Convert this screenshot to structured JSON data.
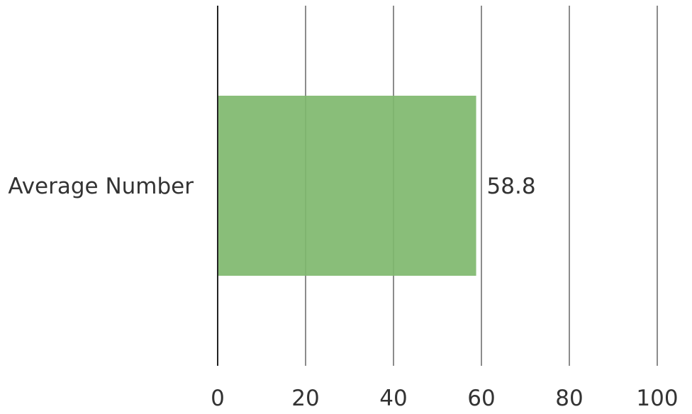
{
  "chart_data": {
    "type": "bar",
    "orientation": "horizontal",
    "categories": [
      "Average Number"
    ],
    "values": [
      58.8
    ],
    "data_labels": [
      "58.8"
    ],
    "title": "",
    "xlabel": "",
    "ylabel": "",
    "xlim": [
      0,
      100
    ],
    "x_ticks": [
      "0",
      "20",
      "40",
      "60",
      "80",
      "100"
    ],
    "grid": true,
    "legend": "none",
    "colors": {
      "bar": "#7fb86e",
      "grid": "#8c8c8c",
      "axis": "#222222",
      "text": "#333333"
    }
  }
}
